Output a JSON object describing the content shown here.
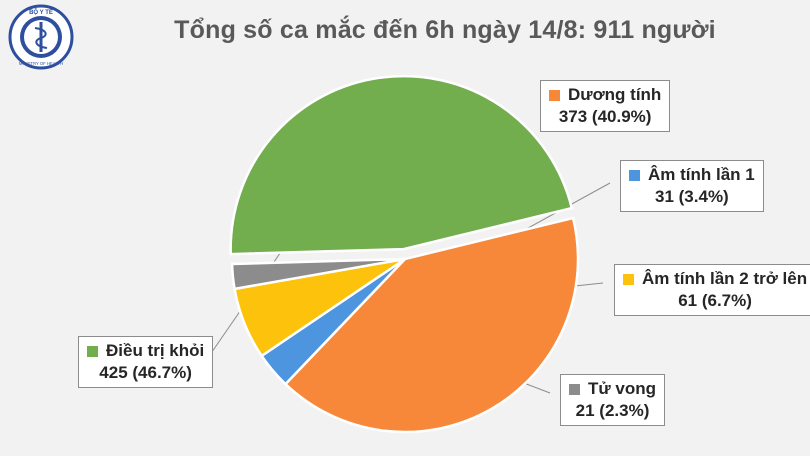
{
  "title": "Tổng số ca mắc đến 6h ngày 14/8: 911 người",
  "logo": {
    "icon": "ministry-of-health-emblem-icon",
    "top_text": "BỘ Y TẾ",
    "bottom_text": "MINISTRY OF HEALTH",
    "colors": {
      "ring": "#2e4f9e",
      "fill": "#ffffff"
    }
  },
  "chart_data": {
    "type": "pie",
    "title": "Tổng số ca mắc đến 6h ngày 14/8: 911 người",
    "total": 911,
    "start_angle_deg": -13.7,
    "exploded": "Điều trị khỏi",
    "slices": [
      {
        "name": "Dương tính",
        "value": 373,
        "value_label": "373 (40.9%)",
        "color": "#f7883a"
      },
      {
        "name": "Âm tính lần 1",
        "value": 31,
        "value_label": "31 (3.4%)",
        "color": "#4e95e0"
      },
      {
        "name": "Âm tính lần 2 trở lên",
        "value": 61,
        "value_label": "61 (6.7%)",
        "color": "#fcc20c"
      },
      {
        "name": "Tử vong",
        "value": 21,
        "value_label": "21 (2.3%)",
        "color": "#8c8c8c"
      },
      {
        "name": "Điều trị khỏi",
        "value": 425,
        "value_label": "425 (46.7%)",
        "color": "#72ad4e"
      }
    ]
  }
}
